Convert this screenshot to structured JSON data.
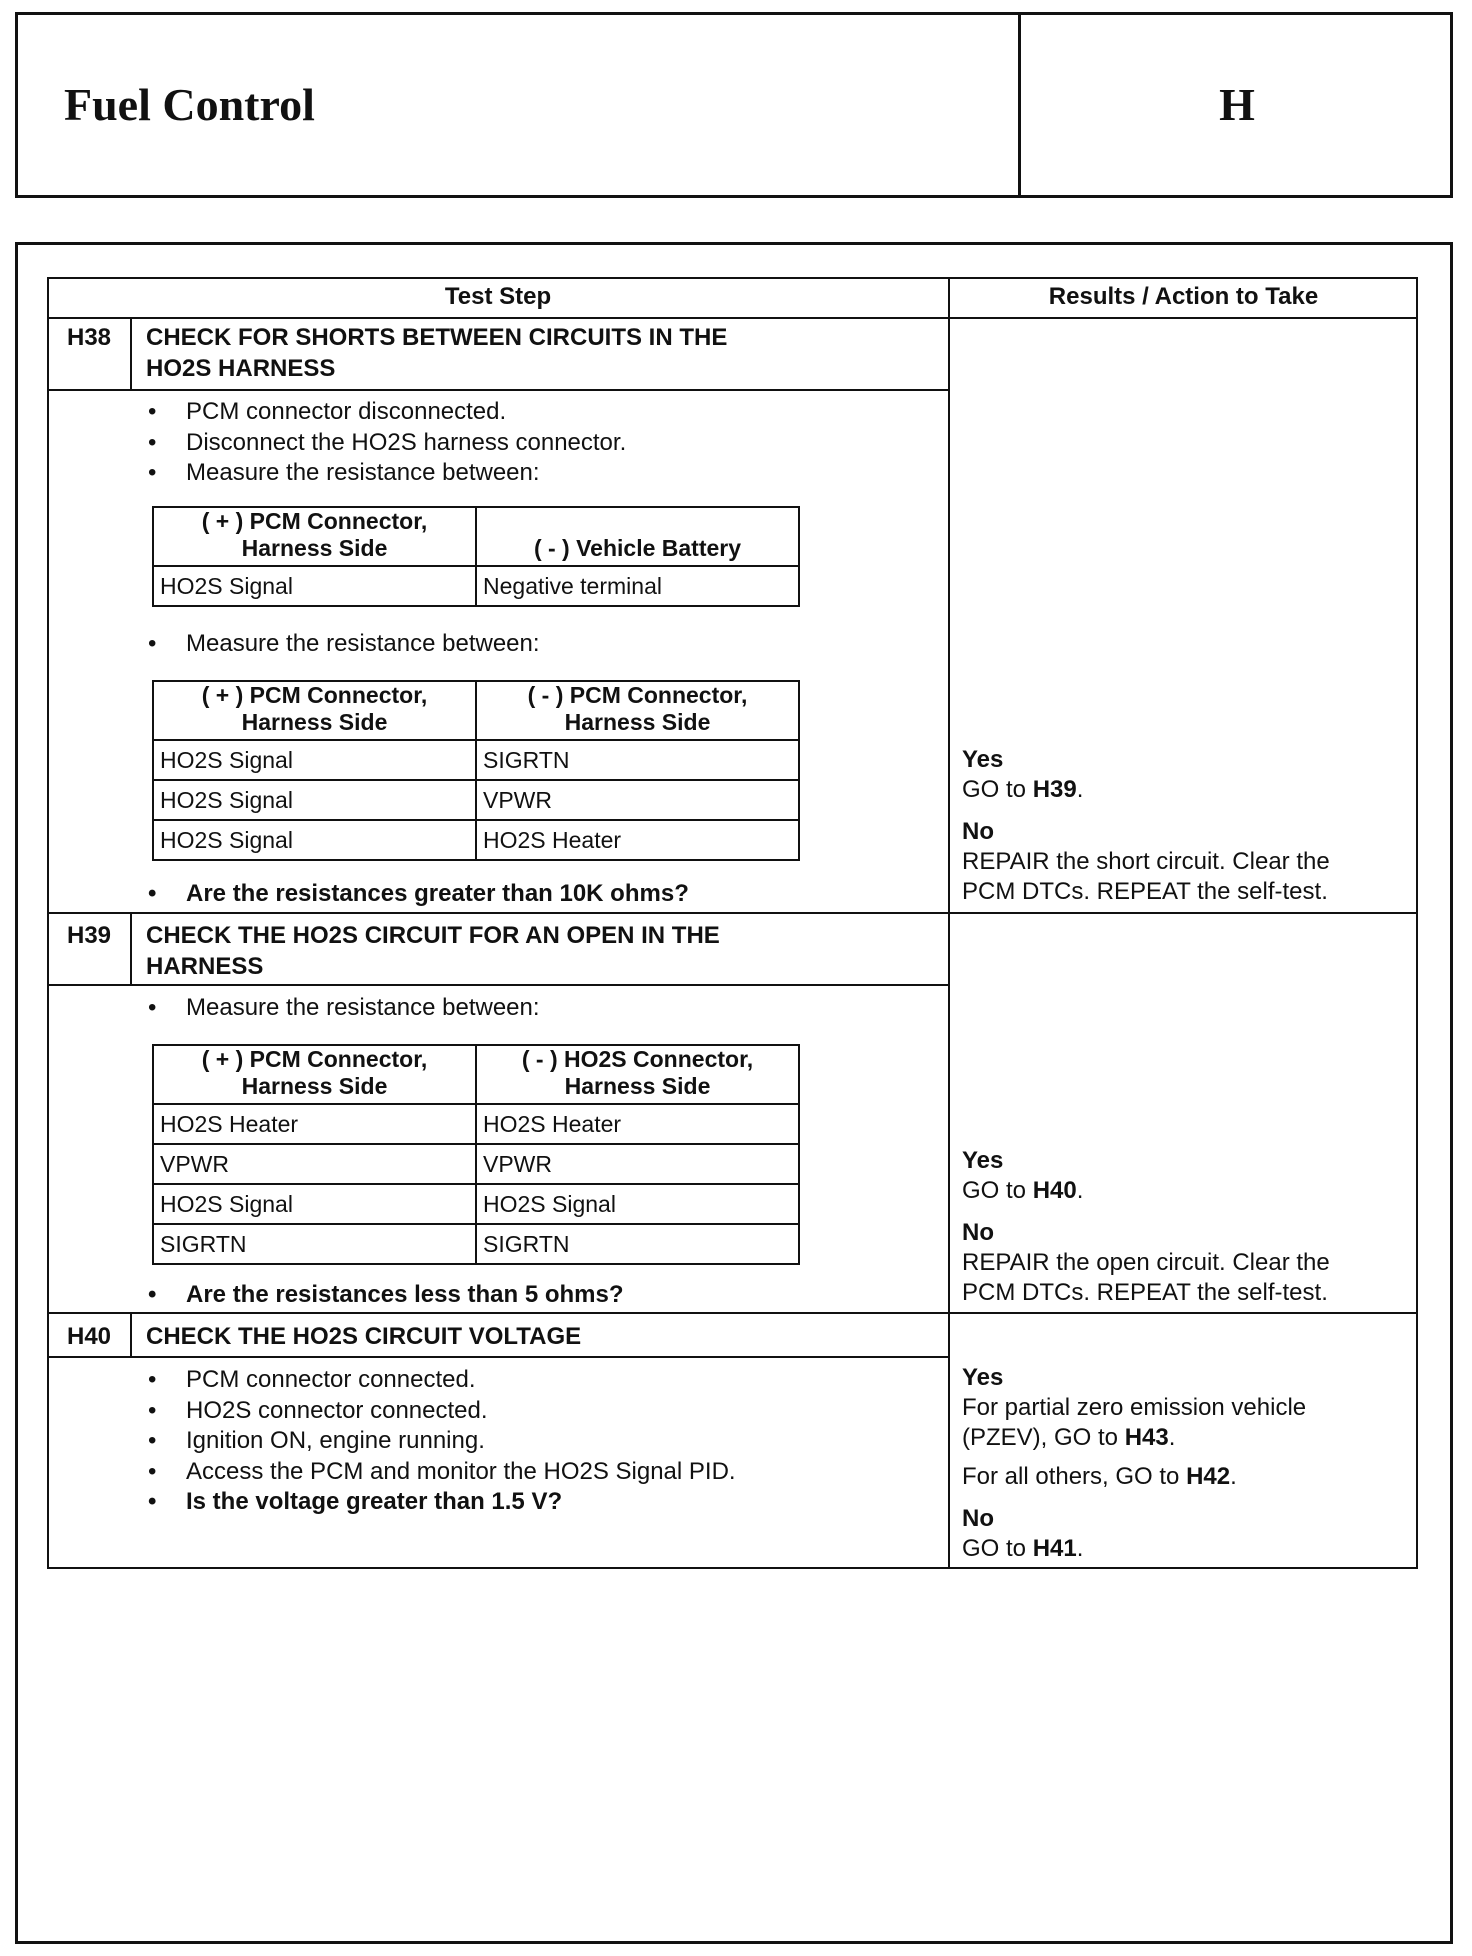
{
  "header": {
    "title": "Fuel Control",
    "section": "H"
  },
  "table": {
    "col_test_step": "Test Step",
    "col_results": "Results / Action to Take"
  },
  "steps": [
    {
      "id": "H38",
      "title_lines": [
        "CHECK FOR SHORTS BETWEEN CIRCUITS IN THE",
        "HO2S HARNESS"
      ],
      "bullets1": [
        "PCM connector disconnected.",
        "Disconnect the HO2S harness connector.",
        "Measure the resistance between:"
      ],
      "table1": {
        "headers": [
          [
            "( + ) PCM Connector,",
            "Harness Side"
          ],
          [
            "",
            "( - ) Vehicle Battery"
          ]
        ],
        "rows": [
          [
            "HO2S Signal",
            "Negative terminal"
          ]
        ]
      },
      "bullet2": "Measure the resistance between:",
      "table2": {
        "headers": [
          [
            "( + ) PCM Connector,",
            "Harness Side"
          ],
          [
            "( - ) PCM Connector,",
            "Harness Side"
          ]
        ],
        "rows": [
          [
            "HO2S Signal",
            "SIGRTN"
          ],
          [
            "HO2S Signal",
            "VPWR"
          ],
          [
            "HO2S Signal",
            "HO2S Heater"
          ]
        ]
      },
      "question": "Are the resistances greater than 10K ohms?",
      "results": {
        "yes": "Yes",
        "yes_text": "GO to ",
        "yes_ref": "H39",
        "no": "No",
        "no_lines": [
          "REPAIR the short circuit. Clear the",
          "PCM DTCs. REPEAT the self-test."
        ]
      }
    },
    {
      "id": "H39",
      "title_lines": [
        "CHECK THE HO2S CIRCUIT FOR AN OPEN IN THE",
        "HARNESS"
      ],
      "bullet1": "Measure the resistance between:",
      "table1": {
        "headers": [
          [
            "( + ) PCM Connector,",
            "Harness Side"
          ],
          [
            "( - ) HO2S Connector,",
            "Harness Side"
          ]
        ],
        "rows": [
          [
            "HO2S Heater",
            "HO2S Heater"
          ],
          [
            "VPWR",
            "VPWR"
          ],
          [
            "HO2S Signal",
            "HO2S Signal"
          ],
          [
            "SIGRTN",
            "SIGRTN"
          ]
        ]
      },
      "question": "Are the resistances less than 5 ohms?",
      "results": {
        "yes": "Yes",
        "yes_text": "GO to ",
        "yes_ref": "H40",
        "no": "No",
        "no_lines": [
          "REPAIR the open circuit. Clear the",
          "PCM DTCs. REPEAT the self-test."
        ]
      }
    },
    {
      "id": "H40",
      "title_lines": [
        "CHECK THE HO2S CIRCUIT VOLTAGE"
      ],
      "bullets": [
        "PCM connector connected.",
        "HO2S connector connected.",
        "Ignition ON, engine running.",
        "Access the PCM and monitor the HO2S Signal PID."
      ],
      "question": "Is the voltage greater than 1.5 V?",
      "results": {
        "yes": "Yes",
        "yes_line1": "For partial zero emission vehicle",
        "yes_line2": "(PZEV), GO to ",
        "yes_ref1": "H43",
        "yes_line3": "For all others, GO to ",
        "yes_ref2": "H42",
        "no": "No",
        "no_text": "GO to ",
        "no_ref": "H41"
      }
    }
  ]
}
